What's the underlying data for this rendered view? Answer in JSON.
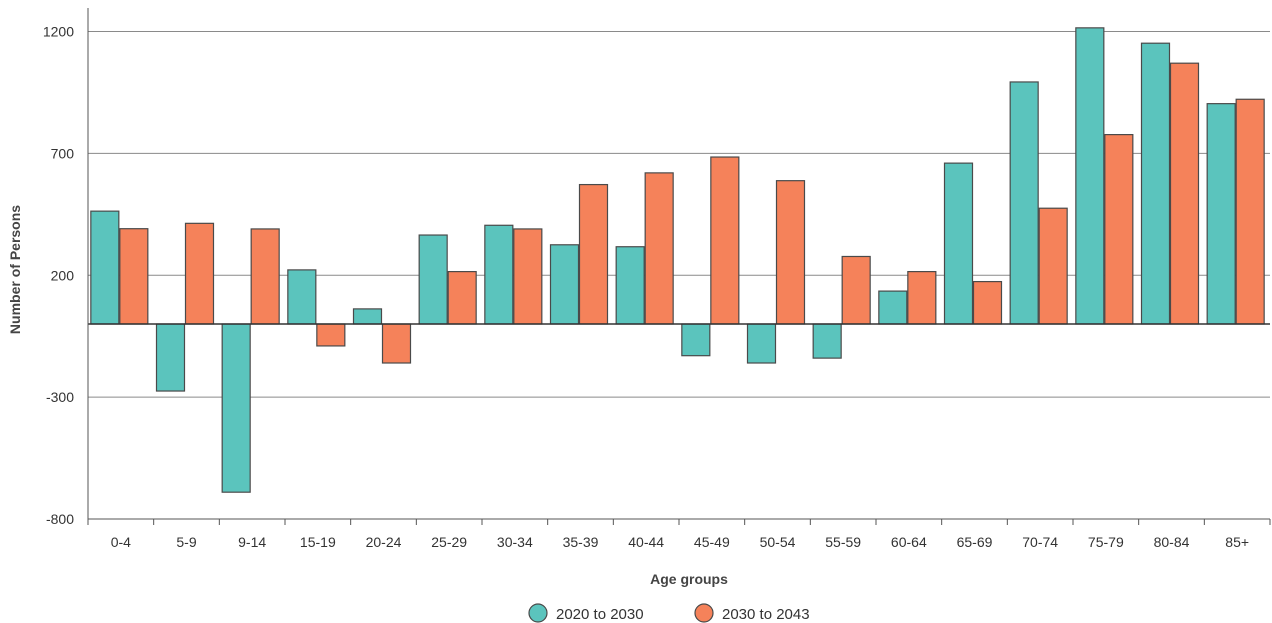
{
  "chart_data": {
    "type": "bar",
    "xlabel": "Age groups",
    "ylabel": "Number of Persons",
    "ylim": [
      -800,
      1300
    ],
    "yticks": [
      -800,
      -300,
      200,
      700,
      1200
    ],
    "grid": true,
    "legend_position": "bottom",
    "categories": [
      "0-4",
      "5-9",
      "9-14",
      "15-19",
      "20-24",
      "25-29",
      "30-34",
      "35-39",
      "40-44",
      "45-49",
      "50-54",
      "55-59",
      "60-64",
      "65-69",
      "70-74",
      "75-79",
      "80-84",
      "85+"
    ],
    "series": [
      {
        "name": "2020 to 2030",
        "color": "#5bc4bd",
        "values": [
          463,
          -275,
          -690,
          222,
          62,
          365,
          405,
          325,
          317,
          -130,
          -160,
          -140,
          135,
          660,
          993,
          1215,
          1152,
          904
        ]
      },
      {
        "name": "2030 to 2043",
        "color": "#f5825a",
        "values": [
          391,
          413,
          390,
          -90,
          -160,
          215,
          390,
          572,
          620,
          685,
          588,
          277,
          215,
          174,
          475,
          777,
          1070,
          922
        ]
      }
    ]
  }
}
